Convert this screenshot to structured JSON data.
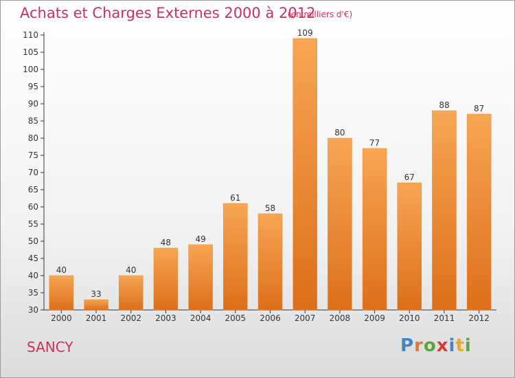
{
  "title": "Achats et Charges Externes 2000 à 2012",
  "subtitle": "(en milliers d'€)",
  "commune": "SANCY",
  "logo": {
    "letters": [
      "P",
      "r",
      "o",
      "x",
      "i",
      "t",
      "i"
    ],
    "colors": [
      "#3f86c7",
      "#e8772e",
      "#5aa63c",
      "#d83a2f",
      "#3f86c7",
      "#e8a92e",
      "#5aa63c"
    ]
  },
  "colors": {
    "title": "#d02d5c",
    "bar_top": "#f7a654",
    "bar_bottom": "#dd6f1a",
    "axis": "#333333",
    "grid": "#bbbbbb"
  },
  "chart_data": {
    "type": "bar",
    "title": "Achats et Charges Externes 2000 à 2012",
    "subtitle": "(en milliers d'€)",
    "categories": [
      "2000",
      "2001",
      "2002",
      "2003",
      "2004",
      "2005",
      "2006",
      "2007",
      "2008",
      "2009",
      "2010",
      "2011",
      "2012"
    ],
    "values": [
      40,
      33,
      40,
      48,
      49,
      61,
      58,
      109,
      80,
      77,
      67,
      88,
      87
    ],
    "ylim": [
      30,
      110
    ],
    "yticks": [
      30,
      35,
      40,
      45,
      50,
      55,
      60,
      65,
      70,
      75,
      80,
      85,
      90,
      95,
      100,
      105,
      110
    ],
    "grid": false,
    "data_labels": true
  }
}
